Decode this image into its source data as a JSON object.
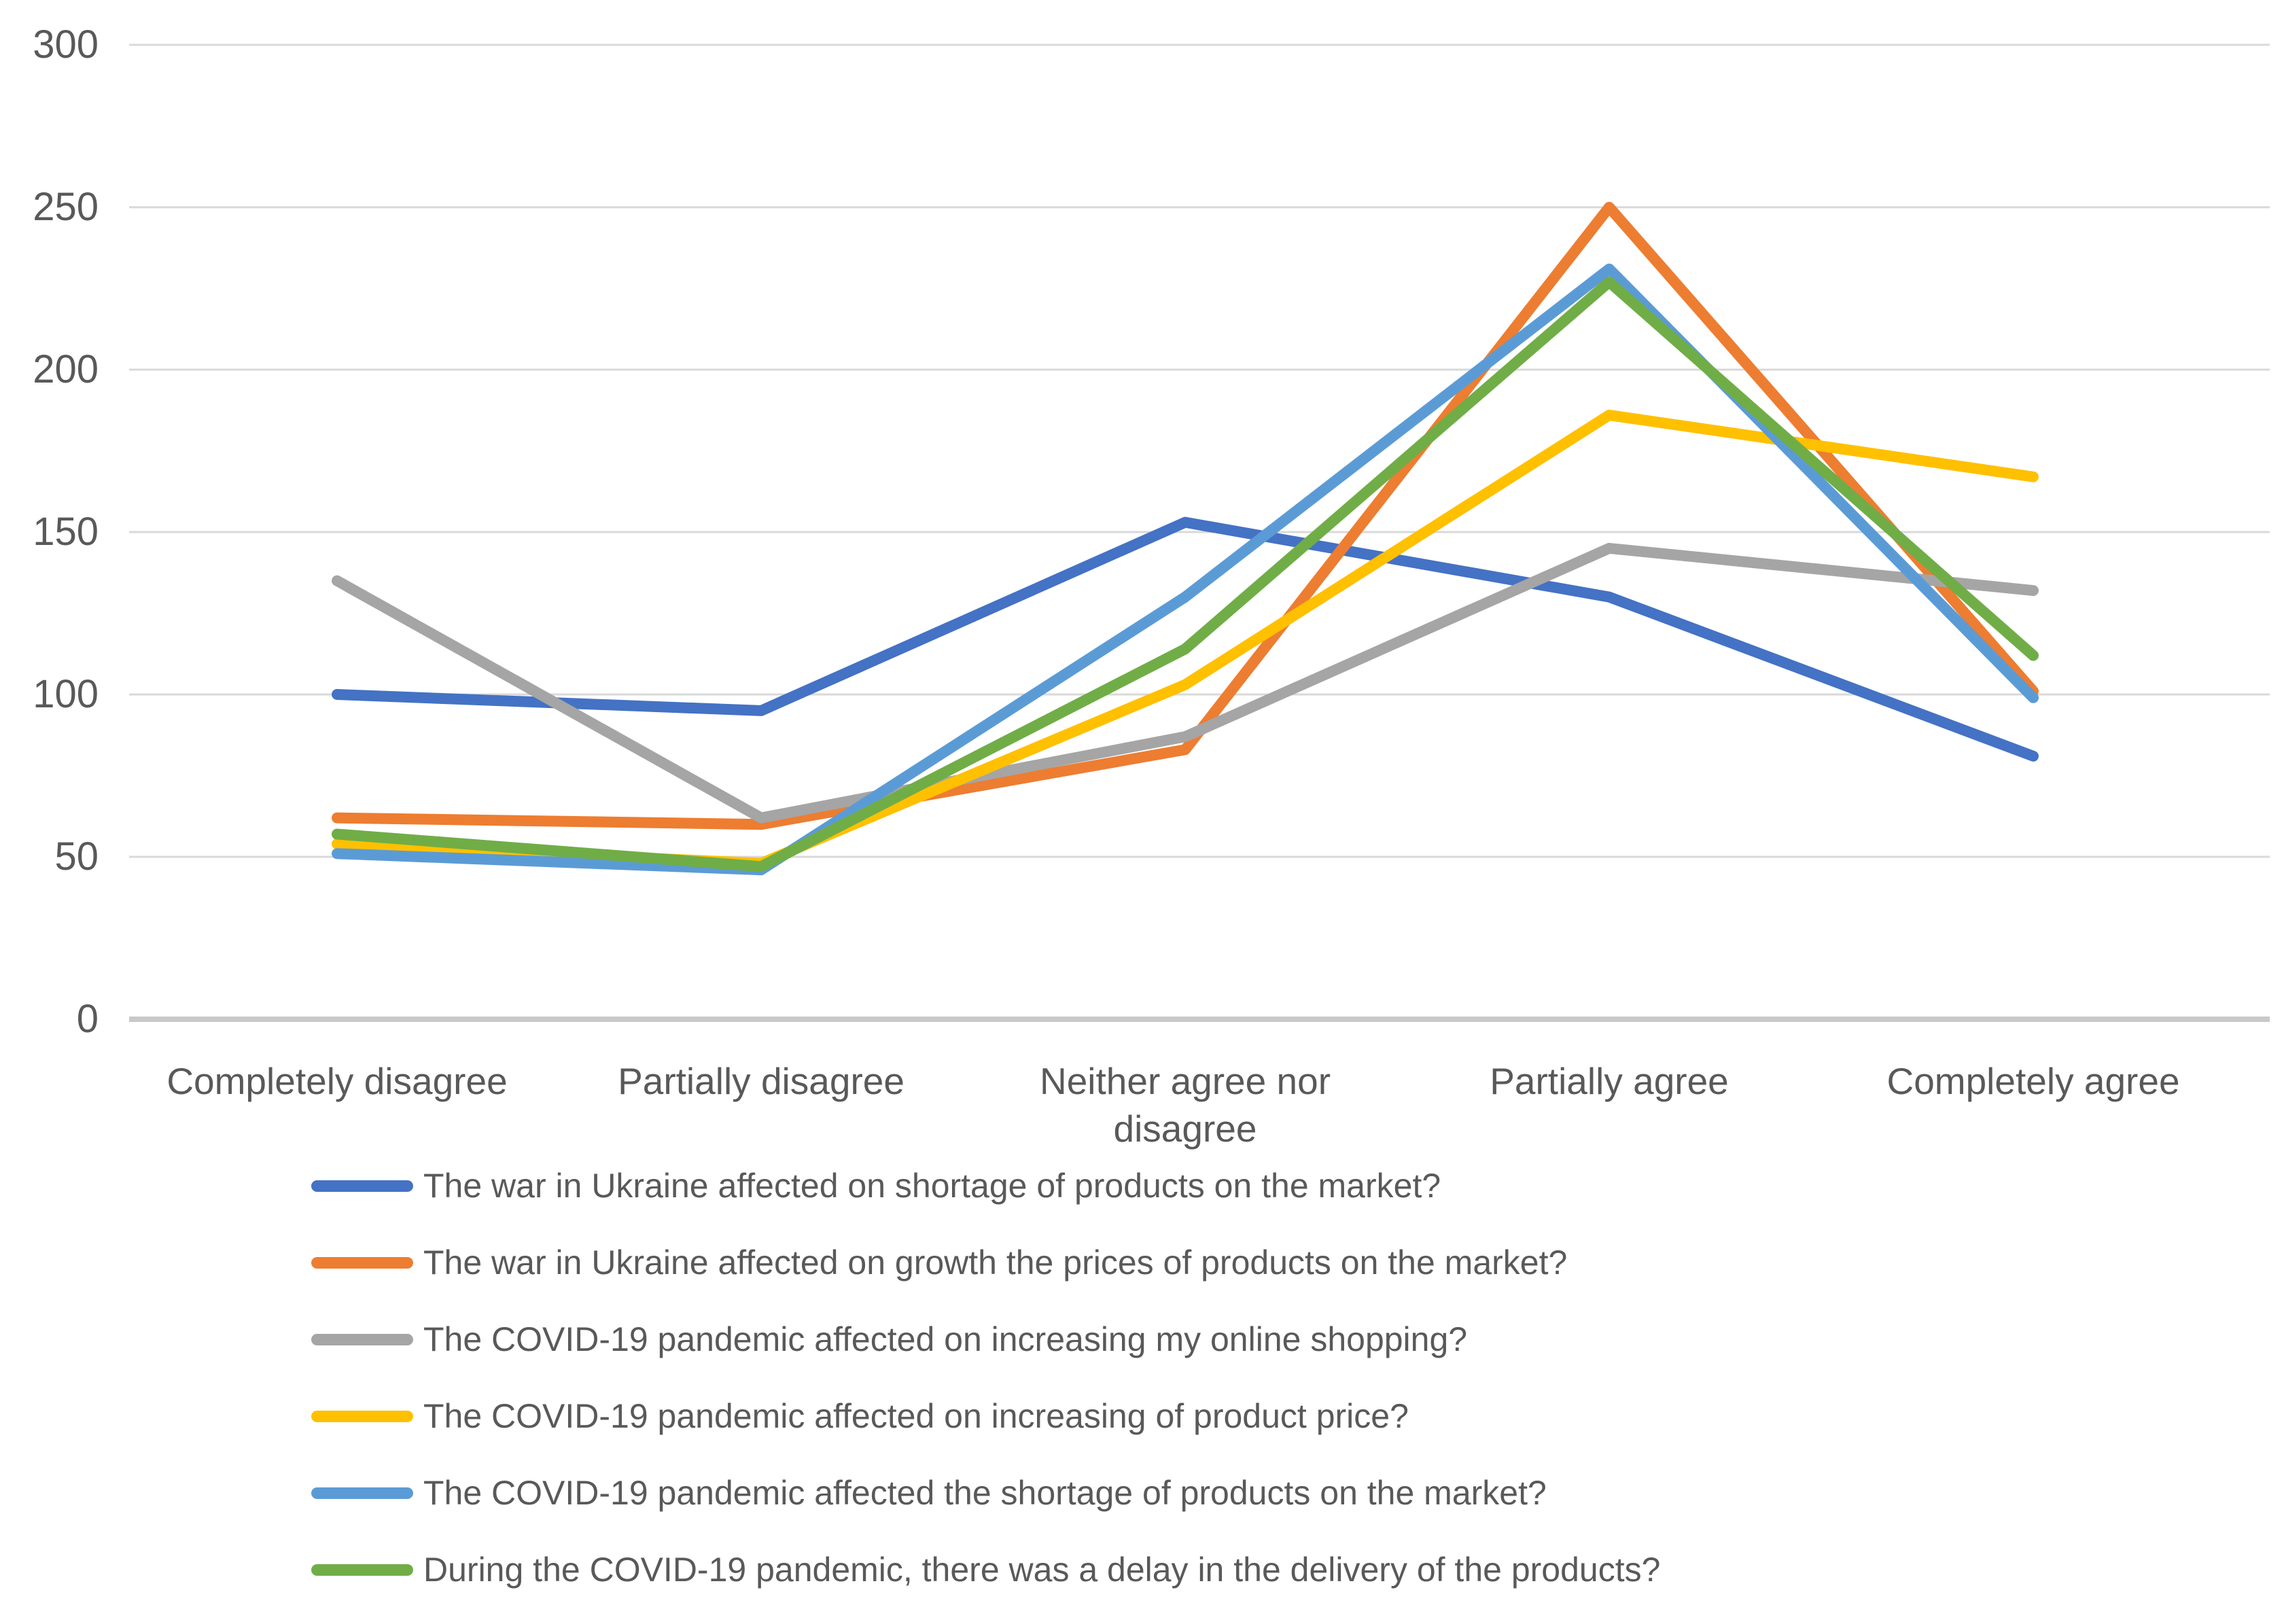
{
  "chart_data": {
    "type": "line",
    "title": "",
    "xlabel": "",
    "ylabel": "",
    "ylim": [
      0,
      300
    ],
    "y_ticks": [
      0,
      50,
      100,
      150,
      200,
      250,
      300
    ],
    "grid": "horizontal",
    "legend_position": "bottom",
    "categories": [
      "Completely disagree",
      "Partially disagree",
      "Neither agree nor disagree",
      "Partially agree",
      "Completely agree"
    ],
    "series": [
      {
        "name": "The war in Ukraine affected on shortage of products on the market?",
        "color": "#4472C4",
        "values": [
          100,
          95,
          153,
          130,
          81
        ]
      },
      {
        "name": "The war in Ukraine affected on growth the prices of products on the market?",
        "color": "#ED7D31",
        "values": [
          62,
          60,
          83,
          250,
          101
        ]
      },
      {
        "name": "The COVID-19 pandemic affected on increasing my online shopping?",
        "color": "#A5A5A5",
        "values": [
          135,
          62,
          87,
          145,
          132
        ]
      },
      {
        "name": "The COVID-19 pandemic affected on increasing of product price?",
        "color": "#FFC000",
        "values": [
          54,
          48,
          103,
          186,
          167
        ]
      },
      {
        "name": "The COVID-19 pandemic affected the shortage of products on the market?",
        "color": "#5B9BD5",
        "values": [
          51,
          46,
          130,
          231,
          99
        ]
      },
      {
        "name": "During the COVID-19 pandemic, there was a delay in the delivery of the products?",
        "color": "#70AD47",
        "values": [
          57,
          47,
          114,
          227,
          112
        ]
      }
    ]
  },
  "style": {
    "text_color": "#595959",
    "gridline_color": "#D9D9D9",
    "axis_line_color": "#C9C9C9",
    "line_width": 16
  }
}
